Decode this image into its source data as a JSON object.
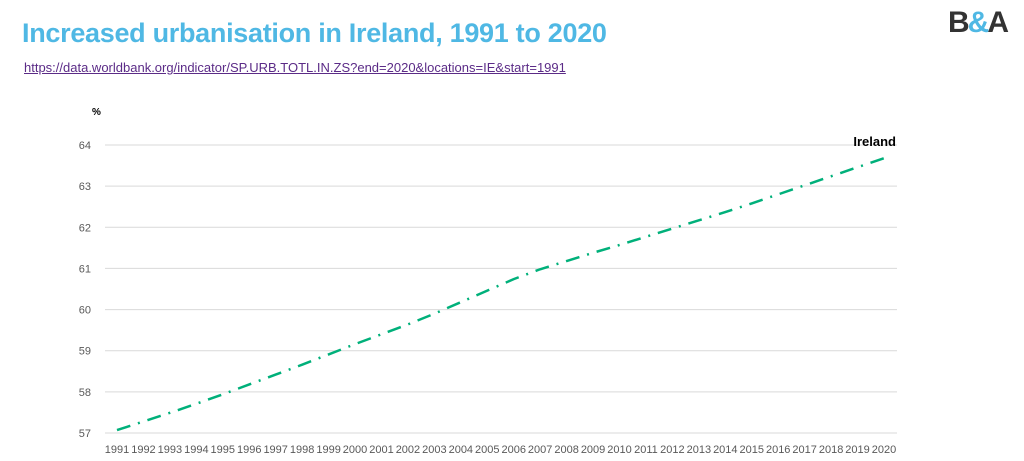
{
  "header": {
    "title": "Increased urbanisation in Ireland, 1991 to 2020",
    "source_link": "https://data.worldbank.org/indicator/SP.URB.TOTL.IN.ZS?end=2020&locations=IE&start=1991",
    "logo": {
      "text_left": "B",
      "text_amp": "&",
      "text_right": "A"
    }
  },
  "colors": {
    "title": "#4fb8e4",
    "line": "#00b07a",
    "grid": "#d9d9d9"
  },
  "chart_data": {
    "type": "line",
    "title": "Increased urbanisation in Ireland, 1991 to 2020",
    "ylabel": "%",
    "xlabel": "",
    "ylim": [
      57,
      64
    ],
    "yticks": [
      57,
      58,
      59,
      60,
      61,
      62,
      63,
      64
    ],
    "grid": true,
    "legend": "series label at line end (top-right)",
    "x": [
      1991,
      1992,
      1993,
      1994,
      1995,
      1996,
      1997,
      1998,
      1999,
      2000,
      2001,
      2002,
      2003,
      2004,
      2005,
      2006,
      2007,
      2008,
      2009,
      2010,
      2011,
      2012,
      2013,
      2014,
      2015,
      2016,
      2017,
      2018,
      2019,
      2020
    ],
    "series": [
      {
        "name": "Ireland",
        "line_style": "dash-dot",
        "values": [
          57.07,
          57.28,
          57.49,
          57.71,
          57.94,
          58.18,
          58.42,
          58.66,
          58.91,
          59.16,
          59.4,
          59.64,
          59.9,
          60.18,
          60.46,
          60.74,
          60.98,
          61.18,
          61.38,
          61.57,
          61.77,
          61.97,
          62.17,
          62.37,
          62.58,
          62.8,
          63.02,
          63.24,
          63.46,
          63.68
        ]
      }
    ]
  }
}
